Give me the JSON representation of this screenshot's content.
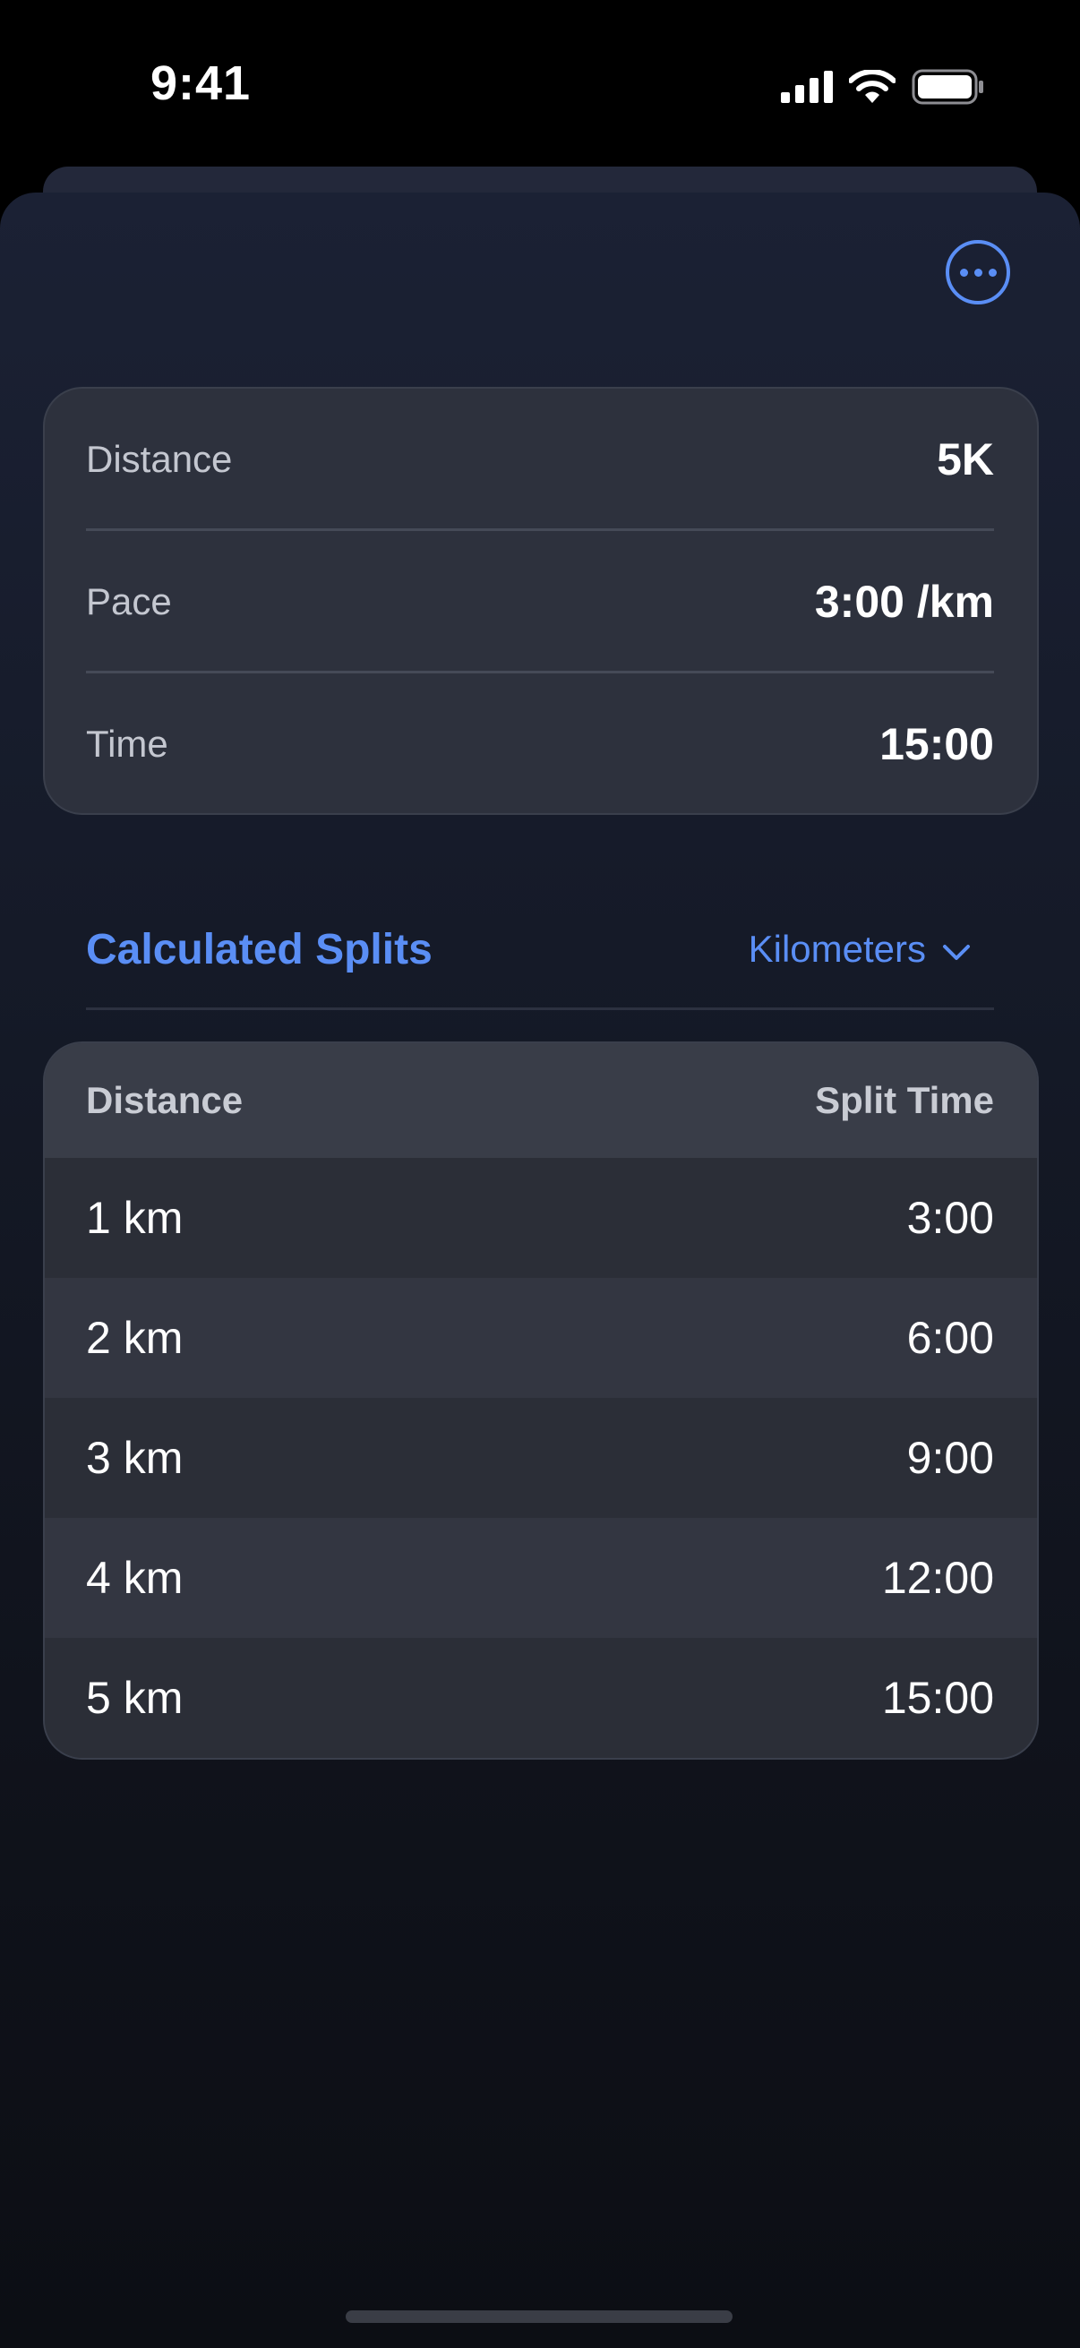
{
  "status_bar": {
    "time": "9:41"
  },
  "colors": {
    "accent": "#5a8ef5",
    "card": "#2d313d",
    "background": "#151a28"
  },
  "icons": {
    "more": "ellipsis-circle-icon",
    "chevron": "chevron-down-icon",
    "signal": "cellular-signal-icon",
    "wifi": "wifi-icon",
    "battery": "battery-icon"
  },
  "summary": {
    "rows": [
      {
        "label": "Distance",
        "value": "5K"
      },
      {
        "label": "Pace",
        "value": "3:00 /km"
      },
      {
        "label": "Time",
        "value": "15:00"
      }
    ]
  },
  "splits_section": {
    "title": "Calculated Splits",
    "unit_selected": "Kilometers"
  },
  "splits_table": {
    "headers": [
      "Distance",
      "Split Time"
    ],
    "rows": [
      {
        "distance": "1 km",
        "time": "3:00"
      },
      {
        "distance": "2 km",
        "time": "6:00"
      },
      {
        "distance": "3 km",
        "time": "9:00"
      },
      {
        "distance": "4 km",
        "time": "12:00"
      },
      {
        "distance": "5 km",
        "time": "15:00"
      }
    ]
  }
}
